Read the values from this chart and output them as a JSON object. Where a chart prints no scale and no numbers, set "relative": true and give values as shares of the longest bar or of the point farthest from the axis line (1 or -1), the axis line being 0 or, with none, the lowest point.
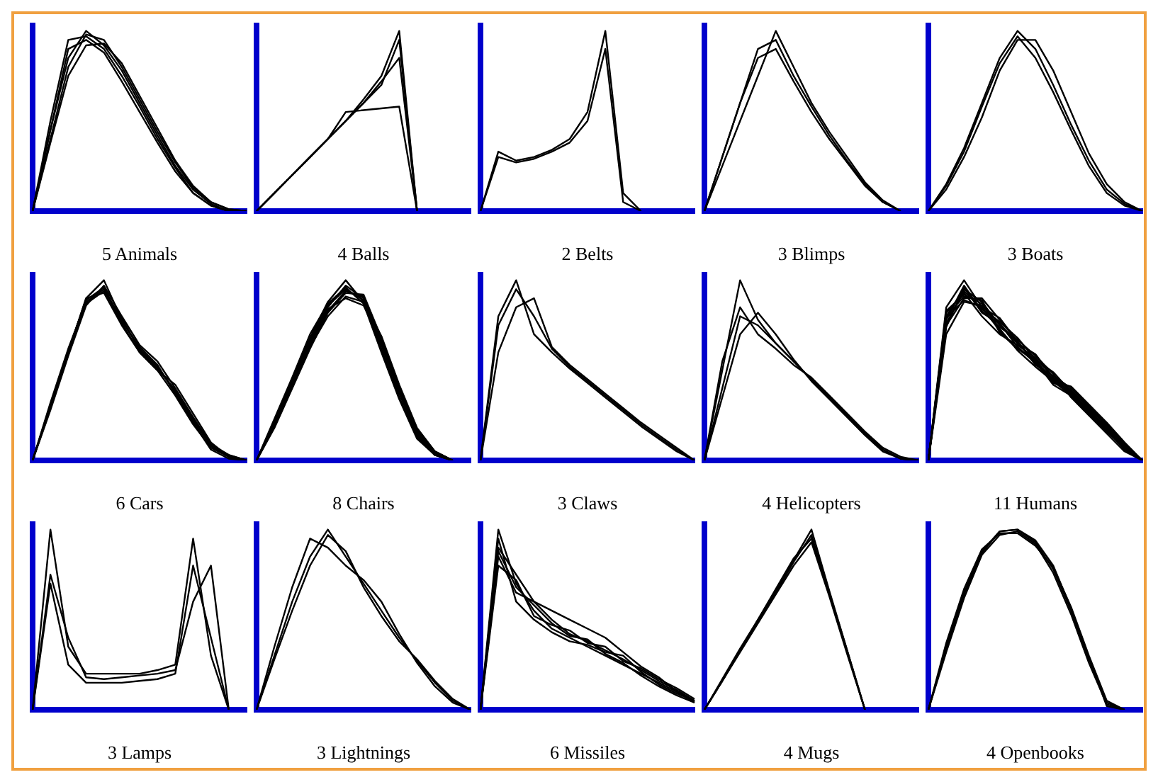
{
  "chart_data": [
    {
      "type": "line",
      "relative": true,
      "xlabel": "5 Animals",
      "categories": [
        null,
        null,
        null,
        null,
        null,
        null,
        null,
        null,
        null,
        null,
        null,
        null,
        null
      ],
      "series": [
        {
          "color": "#000000",
          "values": [
            0,
            0.45,
            0.85,
            1,
            0.92,
            0.78,
            0.6,
            0.42,
            0.25,
            0.12,
            0.04,
            0,
            0
          ]
        },
        {
          "color": "#000000",
          "values": [
            0,
            0.5,
            0.95,
            0.97,
            0.9,
            0.75,
            0.58,
            0.4,
            0.24,
            0.1,
            0.03,
            0,
            0
          ]
        },
        {
          "color": "#000000",
          "values": [
            0,
            0.4,
            0.8,
            0.98,
            0.95,
            0.8,
            0.62,
            0.44,
            0.27,
            0.13,
            0.05,
            0.01,
            0
          ]
        },
        {
          "color": "#000000",
          "values": [
            0,
            0.45,
            0.9,
            0.95,
            0.88,
            0.72,
            0.55,
            0.38,
            0.22,
            0.1,
            0.03,
            0,
            0
          ]
        },
        {
          "color": "#000000",
          "values": [
            0,
            0.38,
            0.75,
            0.92,
            0.93,
            0.82,
            0.64,
            0.46,
            0.28,
            0.14,
            0.05,
            0.01,
            0
          ]
        }
      ]
    },
    {
      "type": "line",
      "relative": true,
      "xlabel": "4 Balls",
      "categories": [
        null,
        null,
        null,
        null,
        null,
        null,
        null,
        null,
        null,
        null,
        null,
        null,
        null
      ],
      "series": [
        {
          "color": "#000000",
          "values": [
            0,
            0.1,
            0.2,
            0.3,
            0.4,
            0.5,
            0.6,
            0.7,
            0.95,
            0,
            null,
            null,
            null
          ]
        },
        {
          "color": "#000000",
          "values": [
            0,
            0.1,
            0.2,
            0.3,
            0.4,
            0.5,
            0.6,
            0.72,
            0.85,
            0,
            null,
            null,
            null
          ]
        },
        {
          "color": "#000000",
          "values": [
            0,
            0.1,
            0.2,
            0.3,
            0.4,
            0.55,
            0.56,
            0.57,
            0.58,
            0,
            null,
            null,
            null
          ]
        },
        {
          "color": "#000000",
          "values": [
            0,
            0.1,
            0.2,
            0.3,
            0.4,
            0.5,
            0.62,
            0.75,
            1,
            0,
            null,
            null,
            null
          ]
        }
      ]
    },
    {
      "type": "line",
      "relative": true,
      "xlabel": "2 Belts",
      "categories": [
        null,
        null,
        null,
        null,
        null,
        null,
        null,
        null,
        null,
        null,
        null,
        null,
        null
      ],
      "series": [
        {
          "color": "#000000",
          "values": [
            0,
            0.33,
            0.28,
            0.3,
            0.34,
            0.4,
            0.55,
            1,
            0.1,
            0,
            null,
            null,
            null
          ]
        },
        {
          "color": "#000000",
          "values": [
            0,
            0.3,
            0.27,
            0.29,
            0.33,
            0.38,
            0.5,
            0.9,
            0.05,
            0,
            null,
            null,
            null
          ]
        }
      ]
    },
    {
      "type": "line",
      "relative": true,
      "xlabel": "3 Blimps",
      "categories": [
        null,
        null,
        null,
        null,
        null,
        null,
        null,
        null,
        null,
        null,
        null,
        null,
        null
      ],
      "series": [
        {
          "color": "#000000",
          "values": [
            0,
            0.3,
            0.6,
            0.9,
            0.95,
            0.75,
            0.58,
            0.42,
            0.28,
            0.15,
            0.05,
            0,
            null
          ]
        },
        {
          "color": "#000000",
          "values": [
            0,
            0.25,
            0.5,
            0.75,
            1,
            0.8,
            0.6,
            0.44,
            0.3,
            0.16,
            0.06,
            0,
            null
          ]
        },
        {
          "color": "#000000",
          "values": [
            0,
            0.3,
            0.6,
            0.85,
            0.9,
            0.72,
            0.55,
            0.4,
            0.27,
            0.14,
            0.05,
            0,
            null
          ]
        }
      ]
    },
    {
      "type": "line",
      "relative": true,
      "xlabel": "3 Boats",
      "categories": [
        null,
        null,
        null,
        null,
        null,
        null,
        null,
        null,
        null,
        null,
        null,
        null,
        null
      ],
      "series": [
        {
          "color": "#000000",
          "values": [
            0,
            0.15,
            0.35,
            0.6,
            0.85,
            1,
            0.9,
            0.7,
            0.48,
            0.28,
            0.12,
            0.04,
            0
          ]
        },
        {
          "color": "#000000",
          "values": [
            0,
            0.12,
            0.3,
            0.52,
            0.78,
            0.95,
            0.95,
            0.78,
            0.55,
            0.32,
            0.15,
            0.05,
            0
          ]
        },
        {
          "color": "#000000",
          "values": [
            0,
            0.14,
            0.33,
            0.58,
            0.82,
            0.97,
            0.85,
            0.66,
            0.45,
            0.25,
            0.1,
            0.03,
            0
          ]
        }
      ]
    },
    {
      "type": "line",
      "relative": true,
      "xlabel": "6 Cars",
      "categories": [
        null,
        null,
        null,
        null,
        null,
        null,
        null,
        null,
        null,
        null,
        null,
        null,
        null
      ],
      "series": [
        {
          "color": "#000000",
          "values": [
            0,
            0.3,
            0.6,
            0.9,
            1,
            0.78,
            0.62,
            0.52,
            0.38,
            0.22,
            0.08,
            0.02,
            0
          ]
        },
        {
          "color": "#000000",
          "values": [
            0,
            0.32,
            0.62,
            0.88,
            0.95,
            0.76,
            0.6,
            0.5,
            0.36,
            0.2,
            0.07,
            0.02,
            0
          ]
        },
        {
          "color": "#000000",
          "values": [
            0,
            0.28,
            0.58,
            0.86,
            0.97,
            0.8,
            0.64,
            0.55,
            0.4,
            0.24,
            0.09,
            0.03,
            0
          ]
        },
        {
          "color": "#000000",
          "values": [
            0,
            0.3,
            0.6,
            0.9,
            0.93,
            0.75,
            0.6,
            0.5,
            0.42,
            0.26,
            0.1,
            0.02,
            0
          ]
        },
        {
          "color": "#000000",
          "values": [
            0,
            0.31,
            0.61,
            0.89,
            0.96,
            0.77,
            0.63,
            0.53,
            0.37,
            0.21,
            0.06,
            0.01,
            0
          ]
        },
        {
          "color": "#000000",
          "values": [
            0,
            0.29,
            0.59,
            0.87,
            0.94,
            0.79,
            0.61,
            0.51,
            0.39,
            0.23,
            0.08,
            0.03,
            0
          ]
        }
      ]
    },
    {
      "type": "line",
      "relative": true,
      "xlabel": "8 Chairs",
      "categories": [
        null,
        null,
        null,
        null,
        null,
        null,
        null,
        null,
        null,
        null,
        null,
        null,
        null
      ],
      "series": [
        {
          "color": "#000000",
          "values": [
            0,
            0.2,
            0.42,
            0.65,
            0.85,
            0.97,
            0.9,
            0.65,
            0.38,
            0.15,
            0.04,
            0,
            null
          ]
        },
        {
          "color": "#000000",
          "values": [
            0,
            0.22,
            0.45,
            0.68,
            0.88,
            1,
            0.88,
            0.62,
            0.35,
            0.13,
            0.03,
            0,
            null
          ]
        },
        {
          "color": "#000000",
          "values": [
            0,
            0.18,
            0.4,
            0.62,
            0.82,
            0.93,
            0.92,
            0.68,
            0.4,
            0.17,
            0.05,
            0,
            null
          ]
        },
        {
          "color": "#000000",
          "values": [
            0,
            0.2,
            0.43,
            0.66,
            0.84,
            0.9,
            0.86,
            0.66,
            0.39,
            0.16,
            0.04,
            0,
            null
          ]
        },
        {
          "color": "#000000",
          "values": [
            0,
            0.21,
            0.44,
            0.67,
            0.86,
            0.95,
            0.89,
            0.64,
            0.37,
            0.14,
            0.03,
            0,
            null
          ]
        },
        {
          "color": "#000000",
          "values": [
            0,
            0.19,
            0.41,
            0.64,
            0.83,
            0.94,
            0.91,
            0.67,
            0.4,
            0.16,
            0.05,
            0,
            null
          ]
        },
        {
          "color": "#000000",
          "values": [
            0,
            0.23,
            0.46,
            0.7,
            0.87,
            0.96,
            0.87,
            0.6,
            0.34,
            0.12,
            0.03,
            0,
            null
          ]
        },
        {
          "color": "#000000",
          "values": [
            0,
            0.2,
            0.42,
            0.63,
            0.8,
            0.91,
            0.88,
            0.69,
            0.42,
            0.18,
            0.05,
            0,
            null
          ]
        }
      ]
    },
    {
      "type": "line",
      "relative": true,
      "xlabel": "3 Claws",
      "categories": [
        null,
        null,
        null,
        null,
        null,
        null,
        null,
        null,
        null,
        null,
        null,
        null,
        null
      ],
      "series": [
        {
          "color": "#000000",
          "values": [
            0,
            0.75,
            0.95,
            0.8,
            0.62,
            0.52,
            0.44,
            0.36,
            0.28,
            0.2,
            0.13,
            0.06,
            0
          ]
        },
        {
          "color": "#000000",
          "values": [
            0,
            0.8,
            1,
            0.7,
            0.6,
            0.51,
            0.43,
            0.35,
            0.27,
            0.19,
            0.12,
            0.05,
            0
          ]
        },
        {
          "color": "#000000",
          "values": [
            0,
            0.6,
            0.85,
            0.9,
            0.63,
            0.53,
            0.45,
            0.37,
            0.29,
            0.21,
            0.14,
            0.07,
            0
          ]
        }
      ]
    },
    {
      "type": "line",
      "relative": true,
      "xlabel": "4 Helicopters",
      "categories": [
        null,
        null,
        null,
        null,
        null,
        null,
        null,
        null,
        null,
        null,
        null,
        null,
        null
      ],
      "series": [
        {
          "color": "#000000",
          "values": [
            0,
            0.5,
            1,
            0.78,
            0.65,
            0.55,
            0.45,
            0.35,
            0.25,
            0.15,
            0.06,
            0.01,
            0
          ]
        },
        {
          "color": "#000000",
          "values": [
            0,
            0.4,
            0.8,
            0.75,
            0.65,
            0.55,
            0.45,
            0.35,
            0.25,
            0.15,
            0.06,
            0.01,
            0
          ]
        },
        {
          "color": "#000000",
          "values": [
            0,
            0.35,
            0.7,
            0.82,
            0.7,
            0.56,
            0.44,
            0.34,
            0.24,
            0.14,
            0.05,
            0.01,
            0
          ]
        },
        {
          "color": "#000000",
          "values": [
            0,
            0.55,
            0.85,
            0.7,
            0.62,
            0.53,
            0.46,
            0.36,
            0.26,
            0.16,
            0.07,
            0.02,
            0
          ]
        }
      ]
    },
    {
      "type": "line",
      "relative": true,
      "xlabel": "11 Humans",
      "categories": [
        null,
        null,
        null,
        null,
        null,
        null,
        null,
        null,
        null,
        null,
        null,
        null,
        null
      ],
      "series": [
        {
          "color": "#000000",
          "values": [
            0,
            0.8,
            0.95,
            0.88,
            0.75,
            0.65,
            0.55,
            0.45,
            0.38,
            0.28,
            0.18,
            0.08,
            0
          ]
        },
        {
          "color": "#000000",
          "values": [
            0,
            0.85,
            1,
            0.85,
            0.72,
            0.62,
            0.56,
            0.44,
            0.36,
            0.26,
            0.16,
            0.07,
            0
          ]
        },
        {
          "color": "#000000",
          "values": [
            0,
            0.75,
            0.9,
            0.9,
            0.78,
            0.66,
            0.53,
            0.47,
            0.4,
            0.3,
            0.2,
            0.09,
            0
          ]
        },
        {
          "color": "#000000",
          "values": [
            0,
            0.82,
            0.93,
            0.8,
            0.7,
            0.64,
            0.57,
            0.46,
            0.37,
            0.27,
            0.17,
            0.06,
            0
          ]
        },
        {
          "color": "#000000",
          "values": [
            0,
            0.7,
            0.88,
            0.86,
            0.76,
            0.63,
            0.54,
            0.43,
            0.39,
            0.29,
            0.19,
            0.08,
            0
          ]
        },
        {
          "color": "#000000",
          "values": [
            0,
            0.78,
            0.97,
            0.83,
            0.74,
            0.67,
            0.58,
            0.48,
            0.35,
            0.25,
            0.15,
            0.05,
            0
          ]
        },
        {
          "color": "#000000",
          "values": [
            0,
            0.83,
            0.92,
            0.87,
            0.73,
            0.61,
            0.52,
            0.44,
            0.41,
            0.31,
            0.21,
            0.1,
            0
          ]
        },
        {
          "color": "#000000",
          "values": [
            0,
            0.76,
            0.94,
            0.84,
            0.77,
            0.68,
            0.56,
            0.49,
            0.38,
            0.27,
            0.18,
            0.07,
            0
          ]
        },
        {
          "color": "#000000",
          "values": [
            0,
            0.8,
            0.91,
            0.89,
            0.71,
            0.62,
            0.55,
            0.42,
            0.36,
            0.29,
            0.16,
            0.08,
            0
          ]
        },
        {
          "color": "#000000",
          "values": [
            0,
            0.74,
            0.96,
            0.82,
            0.76,
            0.65,
            0.59,
            0.46,
            0.39,
            0.26,
            0.19,
            0.09,
            0
          ]
        },
        {
          "color": "#000000",
          "values": [
            0,
            0.79,
            0.89,
            0.85,
            0.79,
            0.66,
            0.54,
            0.45,
            0.37,
            0.28,
            0.17,
            0.06,
            0
          ]
        }
      ]
    },
    {
      "type": "line",
      "relative": true,
      "xlabel": "3 Lamps",
      "categories": [
        null,
        null,
        null,
        null,
        null,
        null,
        null,
        null,
        null,
        null,
        null,
        null,
        null
      ],
      "series": [
        {
          "color": "#000000",
          "values": [
            0,
            1,
            0.35,
            0.2,
            0.2,
            0.2,
            0.2,
            0.22,
            0.25,
            0.95,
            0.3,
            0,
            null
          ]
        },
        {
          "color": "#000000",
          "values": [
            0,
            0.75,
            0.4,
            0.18,
            0.17,
            0.18,
            0.19,
            0.2,
            0.22,
            0.6,
            0.8,
            0,
            null
          ]
        },
        {
          "color": "#000000",
          "values": [
            0,
            0.7,
            0.25,
            0.15,
            0.15,
            0.15,
            0.16,
            0.17,
            0.2,
            0.8,
            0.4,
            0,
            null
          ]
        }
      ]
    },
    {
      "type": "line",
      "relative": true,
      "xlabel": "3 Lightnings",
      "categories": [
        null,
        null,
        null,
        null,
        null,
        null,
        null,
        null,
        null,
        null,
        null,
        null,
        null
      ],
      "series": [
        {
          "color": "#000000",
          "values": [
            0,
            0.3,
            0.6,
            0.85,
            1,
            0.85,
            0.7,
            0.55,
            0.4,
            0.27,
            0.15,
            0.05,
            0
          ]
        },
        {
          "color": "#000000",
          "values": [
            0,
            0.35,
            0.68,
            0.95,
            0.9,
            0.8,
            0.72,
            0.6,
            0.42,
            0.26,
            0.13,
            0.04,
            0
          ]
        },
        {
          "color": "#000000",
          "values": [
            0,
            0.28,
            0.55,
            0.8,
            0.97,
            0.88,
            0.68,
            0.52,
            0.38,
            0.28,
            0.16,
            0.06,
            0
          ]
        }
      ]
    },
    {
      "type": "line",
      "relative": true,
      "xlabel": "6 Missiles",
      "categories": [
        null,
        null,
        null,
        null,
        null,
        null,
        null,
        null,
        null,
        null,
        null,
        null,
        null
      ],
      "series": [
        {
          "color": "#000000",
          "values": [
            0,
            1,
            0.7,
            0.55,
            0.45,
            0.4,
            0.35,
            0.3,
            0.25,
            0.2,
            0.15,
            0.1,
            0.05
          ]
        },
        {
          "color": "#000000",
          "values": [
            0,
            0.9,
            0.75,
            0.6,
            0.5,
            0.42,
            0.38,
            0.33,
            0.28,
            0.22,
            0.16,
            0.11,
            0.05
          ]
        },
        {
          "color": "#000000",
          "values": [
            0,
            0.85,
            0.65,
            0.6,
            0.55,
            0.5,
            0.45,
            0.4,
            0.32,
            0.24,
            0.18,
            0.1,
            0.04
          ]
        },
        {
          "color": "#000000",
          "values": [
            0,
            0.95,
            0.6,
            0.5,
            0.43,
            0.38,
            0.36,
            0.32,
            0.3,
            0.21,
            0.14,
            0.09,
            0.05
          ]
        },
        {
          "color": "#000000",
          "values": [
            0,
            0.8,
            0.72,
            0.52,
            0.47,
            0.44,
            0.37,
            0.35,
            0.27,
            0.23,
            0.17,
            0.12,
            0.06
          ]
        },
        {
          "color": "#000000",
          "values": [
            0,
            0.88,
            0.68,
            0.58,
            0.48,
            0.41,
            0.39,
            0.31,
            0.26,
            0.19,
            0.13,
            0.08,
            0.04
          ]
        }
      ]
    },
    {
      "type": "line",
      "relative": true,
      "xlabel": "4 Mugs",
      "categories": [
        null,
        null,
        null,
        null,
        null,
        null,
        null,
        null,
        null,
        null,
        null,
        null,
        null
      ],
      "series": [
        {
          "color": "#000000",
          "values": [
            0,
            0.16,
            0.33,
            0.5,
            0.66,
            0.83,
            1,
            0.66,
            0.33,
            0,
            null,
            null,
            null
          ]
        },
        {
          "color": "#000000",
          "values": [
            0,
            0.16,
            0.33,
            0.49,
            0.65,
            0.82,
            0.97,
            0.64,
            0.32,
            0,
            null,
            null,
            null
          ]
        },
        {
          "color": "#000000",
          "values": [
            0,
            0.17,
            0.34,
            0.5,
            0.67,
            0.84,
            0.95,
            0.65,
            0.33,
            0,
            null,
            null,
            null
          ]
        },
        {
          "color": "#000000",
          "values": [
            0,
            0.16,
            0.32,
            0.48,
            0.64,
            0.8,
            0.93,
            0.63,
            0.31,
            0,
            null,
            null,
            null
          ]
        }
      ]
    },
    {
      "type": "line",
      "relative": true,
      "xlabel": "4 Openbooks",
      "categories": [
        null,
        null,
        null,
        null,
        null,
        null,
        null,
        null,
        null,
        null,
        null,
        null,
        null
      ],
      "series": [
        {
          "color": "#000000",
          "values": [
            0,
            0.35,
            0.65,
            0.88,
            0.99,
            1,
            0.93,
            0.78,
            0.55,
            0.28,
            0.04,
            0,
            null
          ]
        },
        {
          "color": "#000000",
          "values": [
            0,
            0.32,
            0.62,
            0.86,
            0.97,
            0.99,
            0.92,
            0.76,
            0.53,
            0.26,
            0.03,
            0,
            null
          ]
        },
        {
          "color": "#000000",
          "values": [
            0,
            0.37,
            0.67,
            0.89,
            0.98,
            0.98,
            0.91,
            0.79,
            0.57,
            0.3,
            0.05,
            0,
            null
          ]
        },
        {
          "color": "#000000",
          "values": [
            0,
            0.34,
            0.64,
            0.87,
            0.99,
            1,
            0.94,
            0.8,
            0.56,
            0.29,
            0.02,
            0,
            null
          ]
        }
      ]
    }
  ]
}
